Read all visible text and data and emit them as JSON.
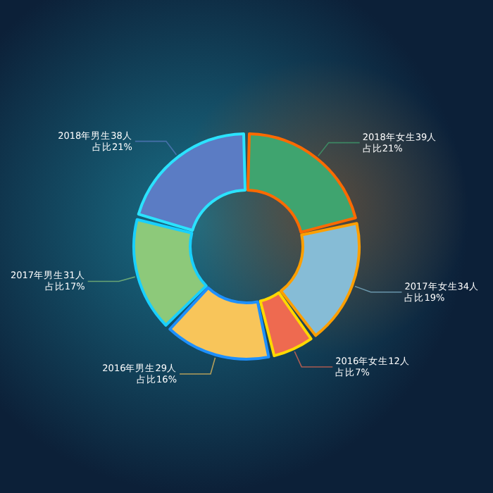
{
  "chart_data": {
    "type": "donut",
    "categories": [
      "2018年女生39人",
      "2017年女生34人",
      "2016年女生12人",
      "2016年男生29人",
      "2017年男生31人",
      "2018年男生38人"
    ],
    "values": [
      39,
      34,
      12,
      29,
      31,
      38
    ],
    "value_labels": [
      "占比21%",
      "占比19%",
      "占比7%",
      "占比16%",
      "占比17%",
      "占比21%"
    ],
    "colors": [
      "#3fa46f",
      "#86bcd6",
      "#ee6a50",
      "#f8c55a",
      "#8dc97a",
      "#5b7cc4"
    ]
  }
}
